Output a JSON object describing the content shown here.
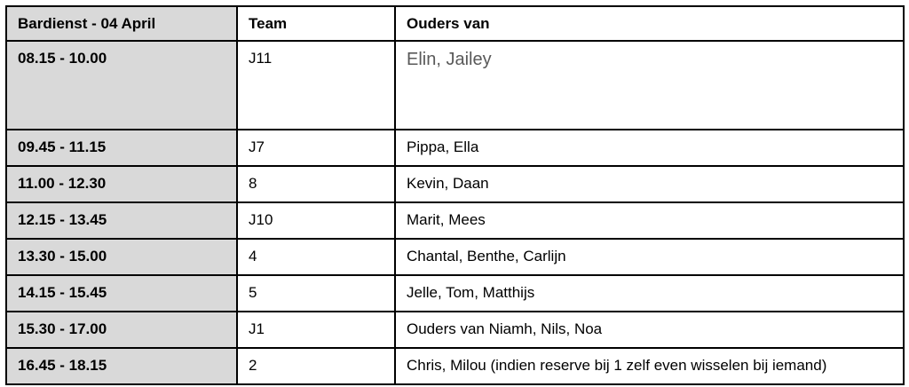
{
  "table": {
    "title": "Bardienst - 04 April",
    "headers": [
      "Bardienst - 04 April",
      "Team",
      "Ouders van"
    ],
    "rows": [
      {
        "time": "08.15 - 10.00",
        "team": "J11",
        "ouders": "Elin, Jailey",
        "tall": true,
        "ouders_muted": true
      },
      {
        "time": "09.45 - 11.15",
        "team": "J7",
        "ouders": "Pippa, Ella"
      },
      {
        "time": "11.00 - 12.30",
        "team": "8",
        "ouders": "Kevin, Daan"
      },
      {
        "time": "12.15 - 13.45",
        "team": "J10",
        "ouders": "Marit, Mees"
      },
      {
        "time": "13.30 - 15.00",
        "team": "4",
        "ouders": "Chantal, Benthe, Carlijn"
      },
      {
        "time": "14.15 - 15.45",
        "team": "5",
        "ouders": "Jelle, Tom, Matthijs"
      },
      {
        "time": "15.30 - 17.00",
        "team": "J1",
        "ouders": "Ouders van Niamh, Nils, Noa"
      },
      {
        "time": "16.45 - 18.15",
        "team": "2",
        "ouders": "Chris, Milou (indien reserve bij 1 zelf even wisselen bij iemand)"
      }
    ],
    "colors": {
      "time_column_bg": "#d9d9d9",
      "border": "#000000",
      "text": "#000000",
      "muted_text": "#595959",
      "page_bg": "#ffffff"
    }
  }
}
